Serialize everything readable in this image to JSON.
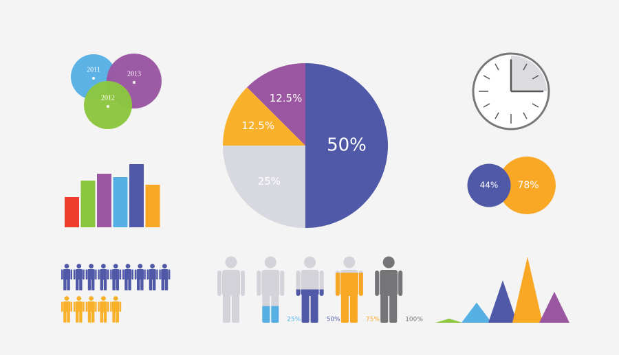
{
  "chart_data": [
    {
      "type": "pie",
      "values": [
        50,
        25,
        12.5,
        12.5
      ],
      "value_labels": [
        "50%",
        "25%",
        "12.5%",
        "12.5%"
      ],
      "colors": [
        "#5059a8",
        "#d8d9e0",
        "#f9b02b",
        "#9b56a2"
      ]
    },
    {
      "type": "bubble-labels",
      "categories": [
        "2011",
        "2013",
        "2012"
      ],
      "colors": [
        "#57b0e3",
        "#9b56a2",
        "#8cc63f"
      ]
    },
    {
      "type": "bar",
      "categories": [
        null,
        null,
        null,
        null,
        null,
        null
      ],
      "values": [
        44,
        68,
        78,
        73,
        92,
        62
      ],
      "colors": [
        "#ee3e2b",
        "#8cc63f",
        "#9b56a2",
        "#57b0e3",
        "#5059a8",
        "#f9a825"
      ],
      "ylim": [
        0,
        100
      ]
    },
    {
      "type": "venn",
      "values": [
        44,
        78
      ],
      "value_labels": [
        "44%",
        "78%"
      ],
      "colors": [
        "#5059a8",
        "#f9a825"
      ]
    },
    {
      "type": "pictogram",
      "values": [
        9,
        5
      ],
      "colors": [
        "#5059a8",
        "#f9b02b"
      ]
    },
    {
      "type": "person-fill",
      "values": [
        0,
        25,
        50,
        75,
        100
      ],
      "value_labels": [
        null,
        "25%",
        "50%",
        "75%",
        "100%"
      ],
      "colors": [
        "#d3d3d9",
        "#57b0e3",
        "#5059a8",
        "#f9a825",
        "#757578"
      ],
      "ylim": [
        0,
        100
      ]
    },
    {
      "type": "triangle",
      "values": [
        6,
        30,
        63,
        98,
        46
      ],
      "colors": [
        "#8cc63f",
        "#57b0e3",
        "#5059a8",
        "#f9a825",
        "#9b56a2"
      ],
      "ylim": [
        0,
        100
      ]
    }
  ]
}
